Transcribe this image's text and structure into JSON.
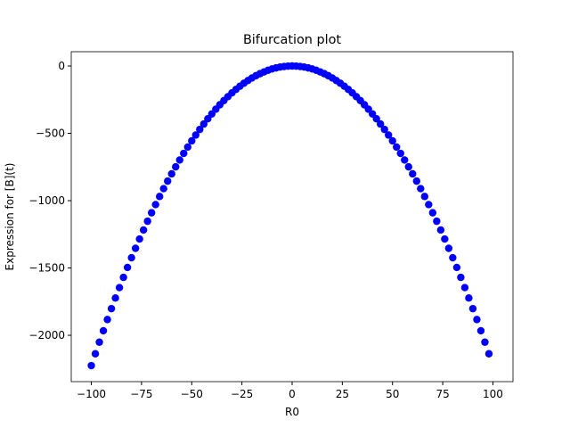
{
  "chart_data": {
    "type": "scatter",
    "title": "Bifurcation plot",
    "x_label": "R0",
    "y_label": "Expression for [B](t)",
    "color": "#0000ff",
    "x": [
      -100,
      -98,
      -96,
      -94,
      -92,
      -90,
      -88,
      -86,
      -84,
      -82,
      -80,
      -78,
      -76,
      -74,
      -72,
      -70,
      -68,
      -66,
      -64,
      -62,
      -60,
      -58,
      -56,
      -54,
      -52,
      -50,
      -48,
      -46,
      -44,
      -42,
      -40,
      -38,
      -36,
      -34,
      -32,
      -30,
      -28,
      -26,
      -24,
      -22,
      -20,
      -18,
      -16,
      -14,
      -12,
      -10,
      -8,
      -6,
      -4,
      -2,
      0,
      2,
      4,
      6,
      8,
      10,
      12,
      14,
      16,
      18,
      20,
      22,
      24,
      26,
      28,
      30,
      32,
      34,
      36,
      38,
      40,
      42,
      44,
      46,
      48,
      50,
      52,
      54,
      56,
      58,
      60,
      62,
      64,
      66,
      68,
      70,
      72,
      74,
      76,
      78,
      80,
      82,
      84,
      86,
      88,
      90,
      92,
      94,
      96,
      98
    ],
    "values": [
      -2225,
      -2137,
      -2051,
      -1966,
      -1883,
      -1802,
      -1723,
      -1646,
      -1570,
      -1496,
      -1424,
      -1354,
      -1285,
      -1218,
      -1153,
      -1090,
      -1029,
      -969,
      -911,
      -855,
      -801,
      -749,
      -698,
      -649,
      -602,
      -556,
      -513,
      -471,
      -431,
      -392,
      -356,
      -321,
      -288,
      -257,
      -228,
      -200,
      -174,
      -150,
      -128,
      -108,
      -89,
      -72,
      -57,
      -44,
      -32,
      -22,
      -14,
      -8,
      -4,
      -1,
      0,
      -1,
      -4,
      -8,
      -14,
      -22,
      -32,
      -44,
      -57,
      -72,
      -89,
      -108,
      -128,
      -150,
      -174,
      -200,
      -228,
      -257,
      -288,
      -321,
      -356,
      -392,
      -431,
      -471,
      -513,
      -556,
      -602,
      -649,
      -698,
      -749,
      -801,
      -855,
      -911,
      -969,
      -1029,
      -1090,
      -1153,
      -1218,
      -1285,
      -1354,
      -1424,
      -1496,
      -1570,
      -1646,
      -1723,
      -1802,
      -1883,
      -1966,
      -2051,
      -2137
    ],
    "xlim": [
      -110,
      110
    ],
    "ylim": [
      -2344,
      106
    ],
    "xticks": [
      {
        "value": -100,
        "label": "−100"
      },
      {
        "value": -75,
        "label": "−75"
      },
      {
        "value": -50,
        "label": "−50"
      },
      {
        "value": -25,
        "label": "−25"
      },
      0,
      25,
      50,
      75,
      100
    ],
    "yticks": [
      {
        "value": -2000,
        "label": "−2000"
      },
      {
        "value": -1500,
        "label": "−1500"
      },
      {
        "value": -1000,
        "label": "−1000"
      },
      {
        "value": -500,
        "label": "−500"
      },
      0
    ]
  }
}
